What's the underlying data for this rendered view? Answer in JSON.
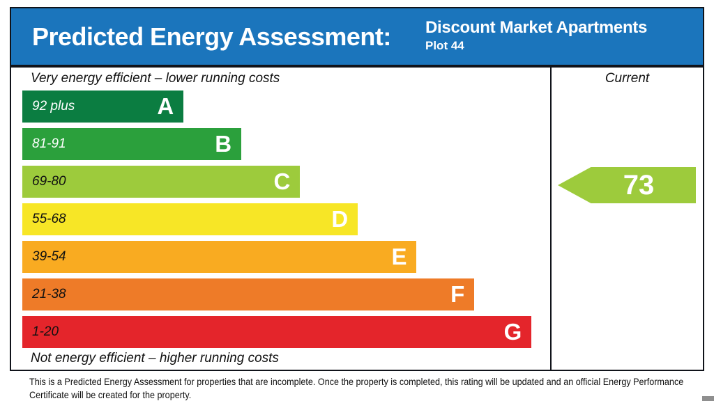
{
  "header": {
    "title": "Predicted Energy Assessment:",
    "property_name": "Discount Market Apartments",
    "plot": "Plot 44",
    "background_color": "#1b75bc",
    "text_color": "#ffffff"
  },
  "chart": {
    "current_label": "Current"
  },
  "chart_data": {
    "type": "bar",
    "title": "Predicted Energy Assessment",
    "subtitle": "Discount Market Apartments Plot 44",
    "axis_note_top": "Very energy efficient – lower running costs",
    "axis_note_bottom": "Not energy efficient – higher running costs",
    "orientation": "horizontal",
    "bands": [
      {
        "letter": "A",
        "range": "92 plus",
        "color": "#0b7d41",
        "range_text_color": "#ffffff",
        "width_pct": 31.0
      },
      {
        "letter": "B",
        "range": "81-91",
        "color": "#2ba03c",
        "range_text_color": "#ffffff",
        "width_pct": 42.1
      },
      {
        "letter": "C",
        "range": "69-80",
        "color": "#9dcb3c",
        "range_text_color": "#111111",
        "width_pct": 53.4
      },
      {
        "letter": "D",
        "range": "55-68",
        "color": "#f7e626",
        "range_text_color": "#111111",
        "width_pct": 64.5
      },
      {
        "letter": "E",
        "range": "39-54",
        "color": "#f9ab21",
        "range_text_color": "#111111",
        "width_pct": 75.8
      },
      {
        "letter": "F",
        "range": "21-38",
        "color": "#ee7b28",
        "range_text_color": "#111111",
        "width_pct": 86.9
      },
      {
        "letter": "G",
        "range": "1-20",
        "color": "#e4252b",
        "range_text_color": "#111111",
        "width_pct": 97.9
      }
    ],
    "current": {
      "value": 73,
      "band": "C",
      "color": "#9dcb3c"
    }
  },
  "footer": {
    "lines": [
      "This is a Predicted Energy Assessment for properties that are incomplete. Once the property is completed, this rating will be updated and an official Energy Performance",
      "Certificate will be created for the property."
    ]
  }
}
